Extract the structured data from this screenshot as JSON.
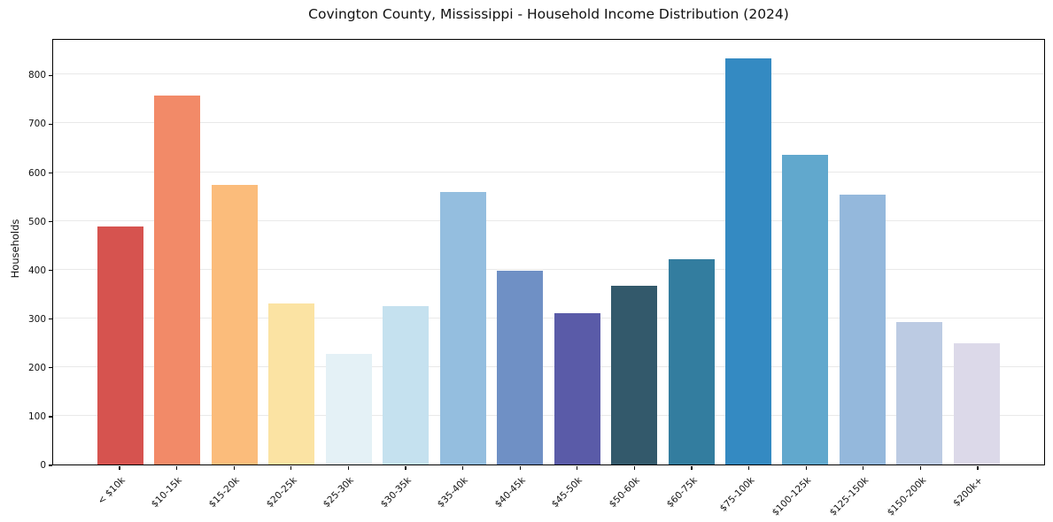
{
  "chart_data": {
    "type": "bar",
    "title": "Covington County, Mississippi - Household Income Distribution (2024)",
    "xlabel": "",
    "ylabel": "Households",
    "categories": [
      "< $10k",
      "$10-15k",
      "$15-20k",
      "$20-25k",
      "$25-30k",
      "$30-35k",
      "$35-40k",
      "$40-45k",
      "$45-50k",
      "$50-60k",
      "$60-75k",
      "$75-100k",
      "$100-125k",
      "$125-150k",
      "$150-200k",
      "$200k+"
    ],
    "values": [
      488,
      757,
      573,
      331,
      227,
      325,
      560,
      398,
      310,
      367,
      421,
      833,
      635,
      554,
      292,
      248
    ],
    "bar_colors": [
      "#d6534f",
      "#f28a68",
      "#fbbc7b",
      "#fbe3a3",
      "#e4f1f6",
      "#c5e1ef",
      "#94bedf",
      "#6f90c5",
      "#5a5ba8",
      "#33596b",
      "#337d9f",
      "#348ac2",
      "#61a8cd",
      "#94b8dc",
      "#bccbe3",
      "#dcd9e9"
    ],
    "ylim": [
      0,
      875
    ],
    "yticks": [
      0,
      100,
      200,
      300,
      400,
      500,
      600,
      700,
      800
    ],
    "grid": "horizontal",
    "legend": "none",
    "background_color": "#ffffff",
    "grid_color": "#e9e9e9",
    "axis_color": "#000000",
    "text_color": "#111111"
  }
}
